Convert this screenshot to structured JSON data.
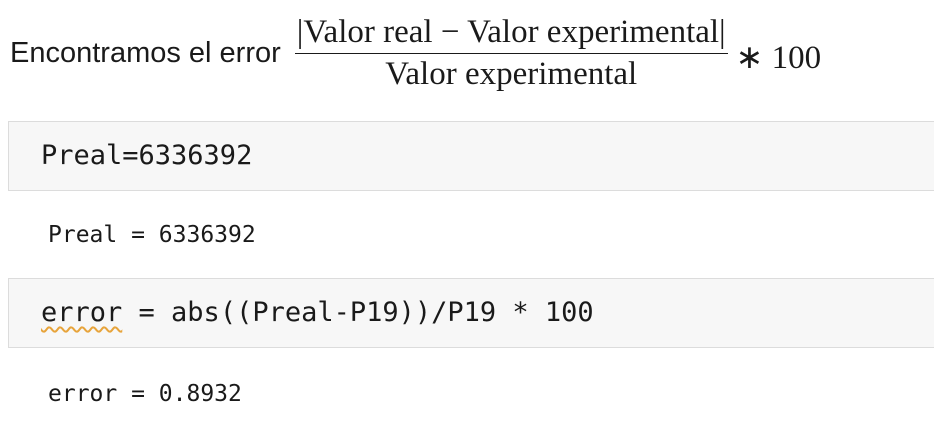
{
  "intro": {
    "text": "Encontramos el error",
    "numerator": "|Valor real − Valor experimental|",
    "denominator": "Valor experimental",
    "multiplier": "∗ 100"
  },
  "cells": [
    {
      "code": "Preal=6336392",
      "output": "Preal = 6336392"
    },
    {
      "code_var": "error",
      "code_rest": " = abs((Preal-P19))/P19 * 100",
      "output": "error = 0.8932"
    }
  ],
  "colors": {
    "cell_background": "#f7f7f7",
    "cell_border": "#dcdcdc",
    "squiggle": "#e7a43b"
  }
}
